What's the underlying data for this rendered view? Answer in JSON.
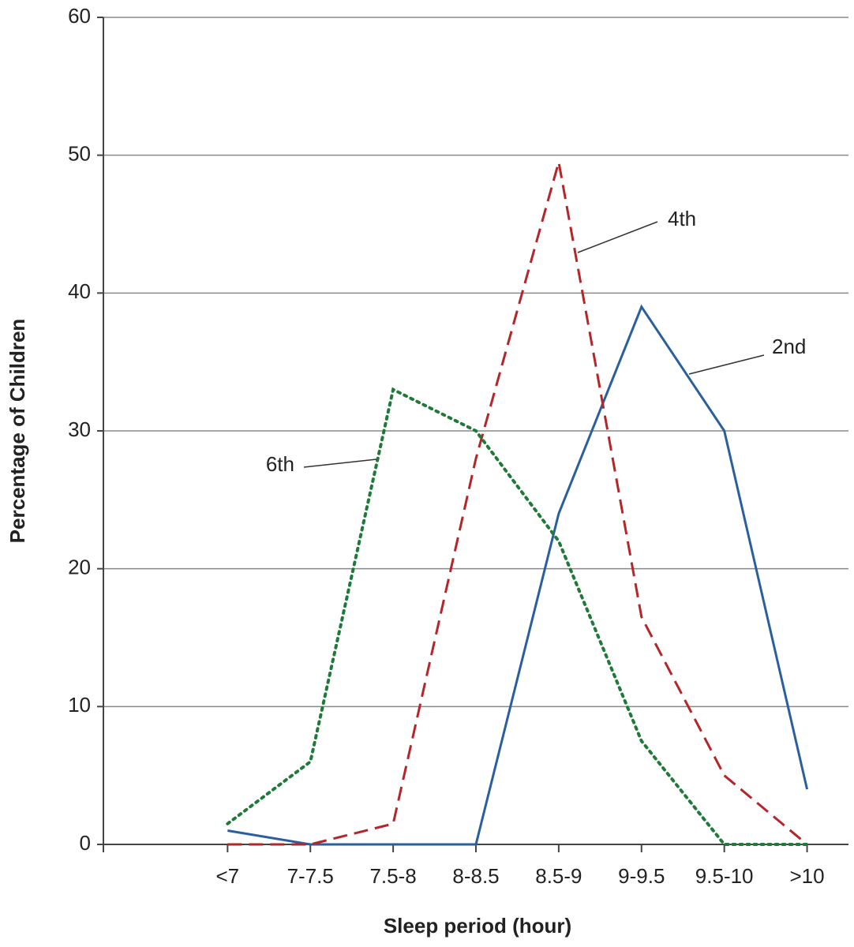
{
  "chart_data": {
    "type": "line",
    "x_label": "Sleep period (hour)",
    "y_label": "Percentage of Children",
    "categories": [
      null,
      "<7",
      "7-7.5",
      "7.5-8",
      "8-8.5",
      "8.5-9",
      "9-9.5",
      "9.5-10",
      ">10"
    ],
    "series": [
      {
        "name": "2nd",
        "color": "#2a5f9e",
        "style": "solid",
        "values": [
          null,
          1,
          0,
          0,
          0,
          24,
          39,
          30,
          4
        ]
      },
      {
        "name": "4th",
        "color": "#b3262a",
        "style": "dashed",
        "values": [
          null,
          0,
          0,
          1.5,
          28,
          49.5,
          16.5,
          5,
          0
        ]
      },
      {
        "name": "6th",
        "color": "#1f7a3a",
        "style": "dotted",
        "values": [
          null,
          1.5,
          6,
          33,
          30,
          22,
          7.5,
          0,
          0
        ]
      }
    ],
    "ylim": [
      0,
      60
    ],
    "yticks": [
      0,
      10,
      20,
      30,
      40,
      50,
      60
    ],
    "grid": true
  }
}
